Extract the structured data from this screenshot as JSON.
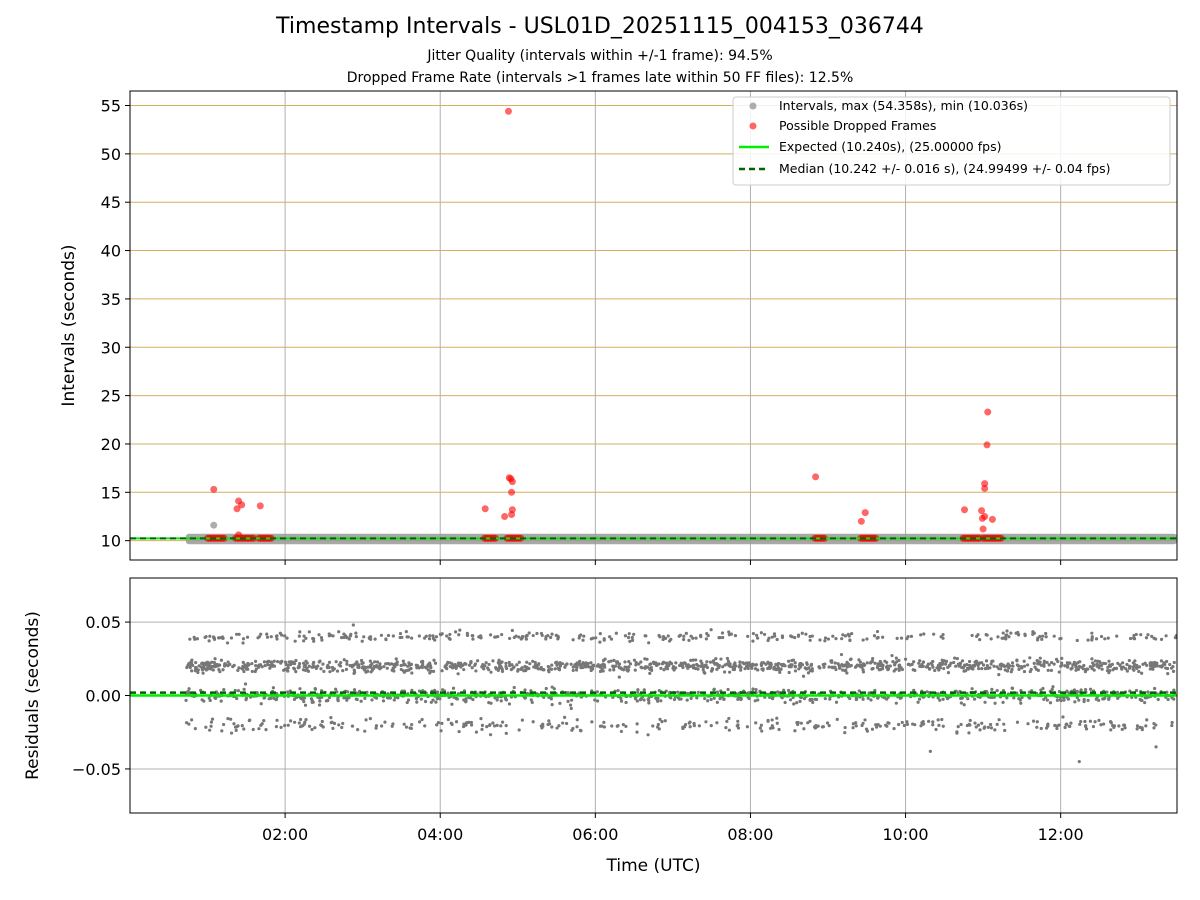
{
  "chart": {
    "title": "Timestamp Intervals - USL01D_20251115_004153_036744",
    "subtitle_1": "Jitter Quality (intervals within +/-1 frame): 94.5%",
    "subtitle_2": "Dropped Frame Rate (intervals >1 frames late within 50 FF files): 12.5%"
  },
  "colors": {
    "intervals": "#999999",
    "dropped": "#ff0000",
    "expected": "#00ee00",
    "median": "#006400",
    "hgrid_top": "#d4b060",
    "grid": "#b0b0b0",
    "residuals": "#777777"
  },
  "chart_data": [
    {
      "type": "scatter",
      "panel": "intervals",
      "ylabel": "Intervals (seconds)",
      "xlabel": "",
      "ylim": [
        8,
        56.5
      ],
      "xlim": [
        0.0,
        13.5
      ],
      "yticks": [
        10,
        15,
        20,
        25,
        30,
        35,
        40,
        45,
        50,
        55
      ],
      "ytick_labels": [
        "10",
        "15",
        "20",
        "25",
        "30",
        "35",
        "40",
        "45",
        "50",
        "55"
      ],
      "legend_position": "top-right",
      "legend": [
        "Intervals, max (54.358s), min (10.036s)",
        "Possible Dropped Frames",
        "Expected (10.240s), (25.00000 fps)",
        "Median (10.242 +/- 0.016 s), (24.99499 +/- 0.04 fps)"
      ],
      "series": [
        {
          "name": "Intervals, max (54.358s), min (10.036s)",
          "marker": "dot",
          "x_range": [
            0.72,
            13.5
          ],
          "y_band": [
            10.04,
            10.3
          ],
          "outliers": [
            {
              "x": 1.08,
              "y": 11.6
            }
          ]
        },
        {
          "name": "Possible Dropped Frames",
          "marker": "dot",
          "points": [
            {
              "x": 1.08,
              "y": 15.3
            },
            {
              "x": 1.38,
              "y": 13.3
            },
            {
              "x": 1.4,
              "y": 14.1
            },
            {
              "x": 1.44,
              "y": 13.7
            },
            {
              "x": 1.4,
              "y": 10.6
            },
            {
              "x": 1.68,
              "y": 13.6
            },
            {
              "x": 4.58,
              "y": 13.3
            },
            {
              "x": 4.83,
              "y": 12.5
            },
            {
              "x": 4.89,
              "y": 16.5
            },
            {
              "x": 4.91,
              "y": 16.4
            },
            {
              "x": 4.92,
              "y": 15.0
            },
            {
              "x": 4.93,
              "y": 16.1
            },
            {
              "x": 4.93,
              "y": 13.2
            },
            {
              "x": 4.92,
              "y": 12.7
            },
            {
              "x": 4.88,
              "y": 54.4
            },
            {
              "x": 8.84,
              "y": 16.6
            },
            {
              "x": 9.43,
              "y": 12.0
            },
            {
              "x": 9.48,
              "y": 12.9
            },
            {
              "x": 10.76,
              "y": 13.2
            },
            {
              "x": 10.98,
              "y": 13.1
            },
            {
              "x": 10.99,
              "y": 12.3
            },
            {
              "x": 11.0,
              "y": 11.2
            },
            {
              "x": 11.02,
              "y": 15.9
            },
            {
              "x": 11.02,
              "y": 15.4
            },
            {
              "x": 11.05,
              "y": 19.9
            },
            {
              "x": 11.06,
              "y": 23.3
            },
            {
              "x": 11.12,
              "y": 12.2
            },
            {
              "x": 11.02,
              "y": 12.5
            }
          ],
          "clusters": [
            {
              "x_range": [
                1.0,
                1.22
              ],
              "y": 10.25
            },
            {
              "x_range": [
                1.36,
                1.6
              ],
              "y": 10.25
            },
            {
              "x_range": [
                1.66,
                1.83
              ],
              "y": 10.25
            },
            {
              "x_range": [
                4.57,
                4.72
              ],
              "y": 10.25
            },
            {
              "x_range": [
                4.86,
                5.05
              ],
              "y": 10.25
            },
            {
              "x_range": [
                8.83,
                8.97
              ],
              "y": 10.25
            },
            {
              "x_range": [
                9.42,
                9.62
              ],
              "y": 10.25
            },
            {
              "x_range": [
                10.74,
                10.96
              ],
              "y": 10.25
            },
            {
              "x_range": [
                11.0,
                11.25
              ],
              "y": 10.25
            }
          ]
        },
        {
          "name": "Expected (10.240s), (25.00000 fps)",
          "style": "solid",
          "y": 10.24
        },
        {
          "name": "Median (10.242 +/- 0.016 s), (24.99499 +/- 0.04 fps)",
          "style": "dashed",
          "y": 10.242
        }
      ]
    },
    {
      "type": "scatter",
      "panel": "residuals",
      "ylabel": "Residuals (seconds)",
      "xlabel": "Time (UTC)",
      "ylim": [
        -0.08,
        0.08
      ],
      "xlim": [
        0.0,
        13.5
      ],
      "yticks": [
        -0.05,
        0.0,
        0.05
      ],
      "ytick_labels": [
        "−0.05",
        "0.00",
        "0.05"
      ],
      "xticks": [
        2,
        4,
        6,
        8,
        10,
        12
      ],
      "xtick_labels": [
        "02:00",
        "04:00",
        "06:00",
        "08:00",
        "10:00",
        "12:00"
      ],
      "series": [
        {
          "name": "",
          "marker": "dot",
          "x_range": [
            0.72,
            13.5
          ],
          "bands": [
            {
              "center": 0.02,
              "spread": 0.004,
              "share": 0.44
            },
            {
              "center": 0.0,
              "spread": 0.004,
              "share": 0.32
            },
            {
              "center": -0.02,
              "spread": 0.004,
              "share": 0.12
            },
            {
              "center": 0.04,
              "spread": 0.003,
              "share": 0.12
            }
          ],
          "outliers": [
            {
              "x": 10.32,
              "y": -0.038
            },
            {
              "x": 12.24,
              "y": -0.045
            },
            {
              "x": 13.23,
              "y": -0.035
            },
            {
              "x": 2.88,
              "y": 0.048
            }
          ]
        },
        {
          "name": "expected",
          "style": "solid",
          "y": 0.0
        },
        {
          "name": "median",
          "style": "dashed",
          "y": 0.002
        }
      ]
    }
  ]
}
